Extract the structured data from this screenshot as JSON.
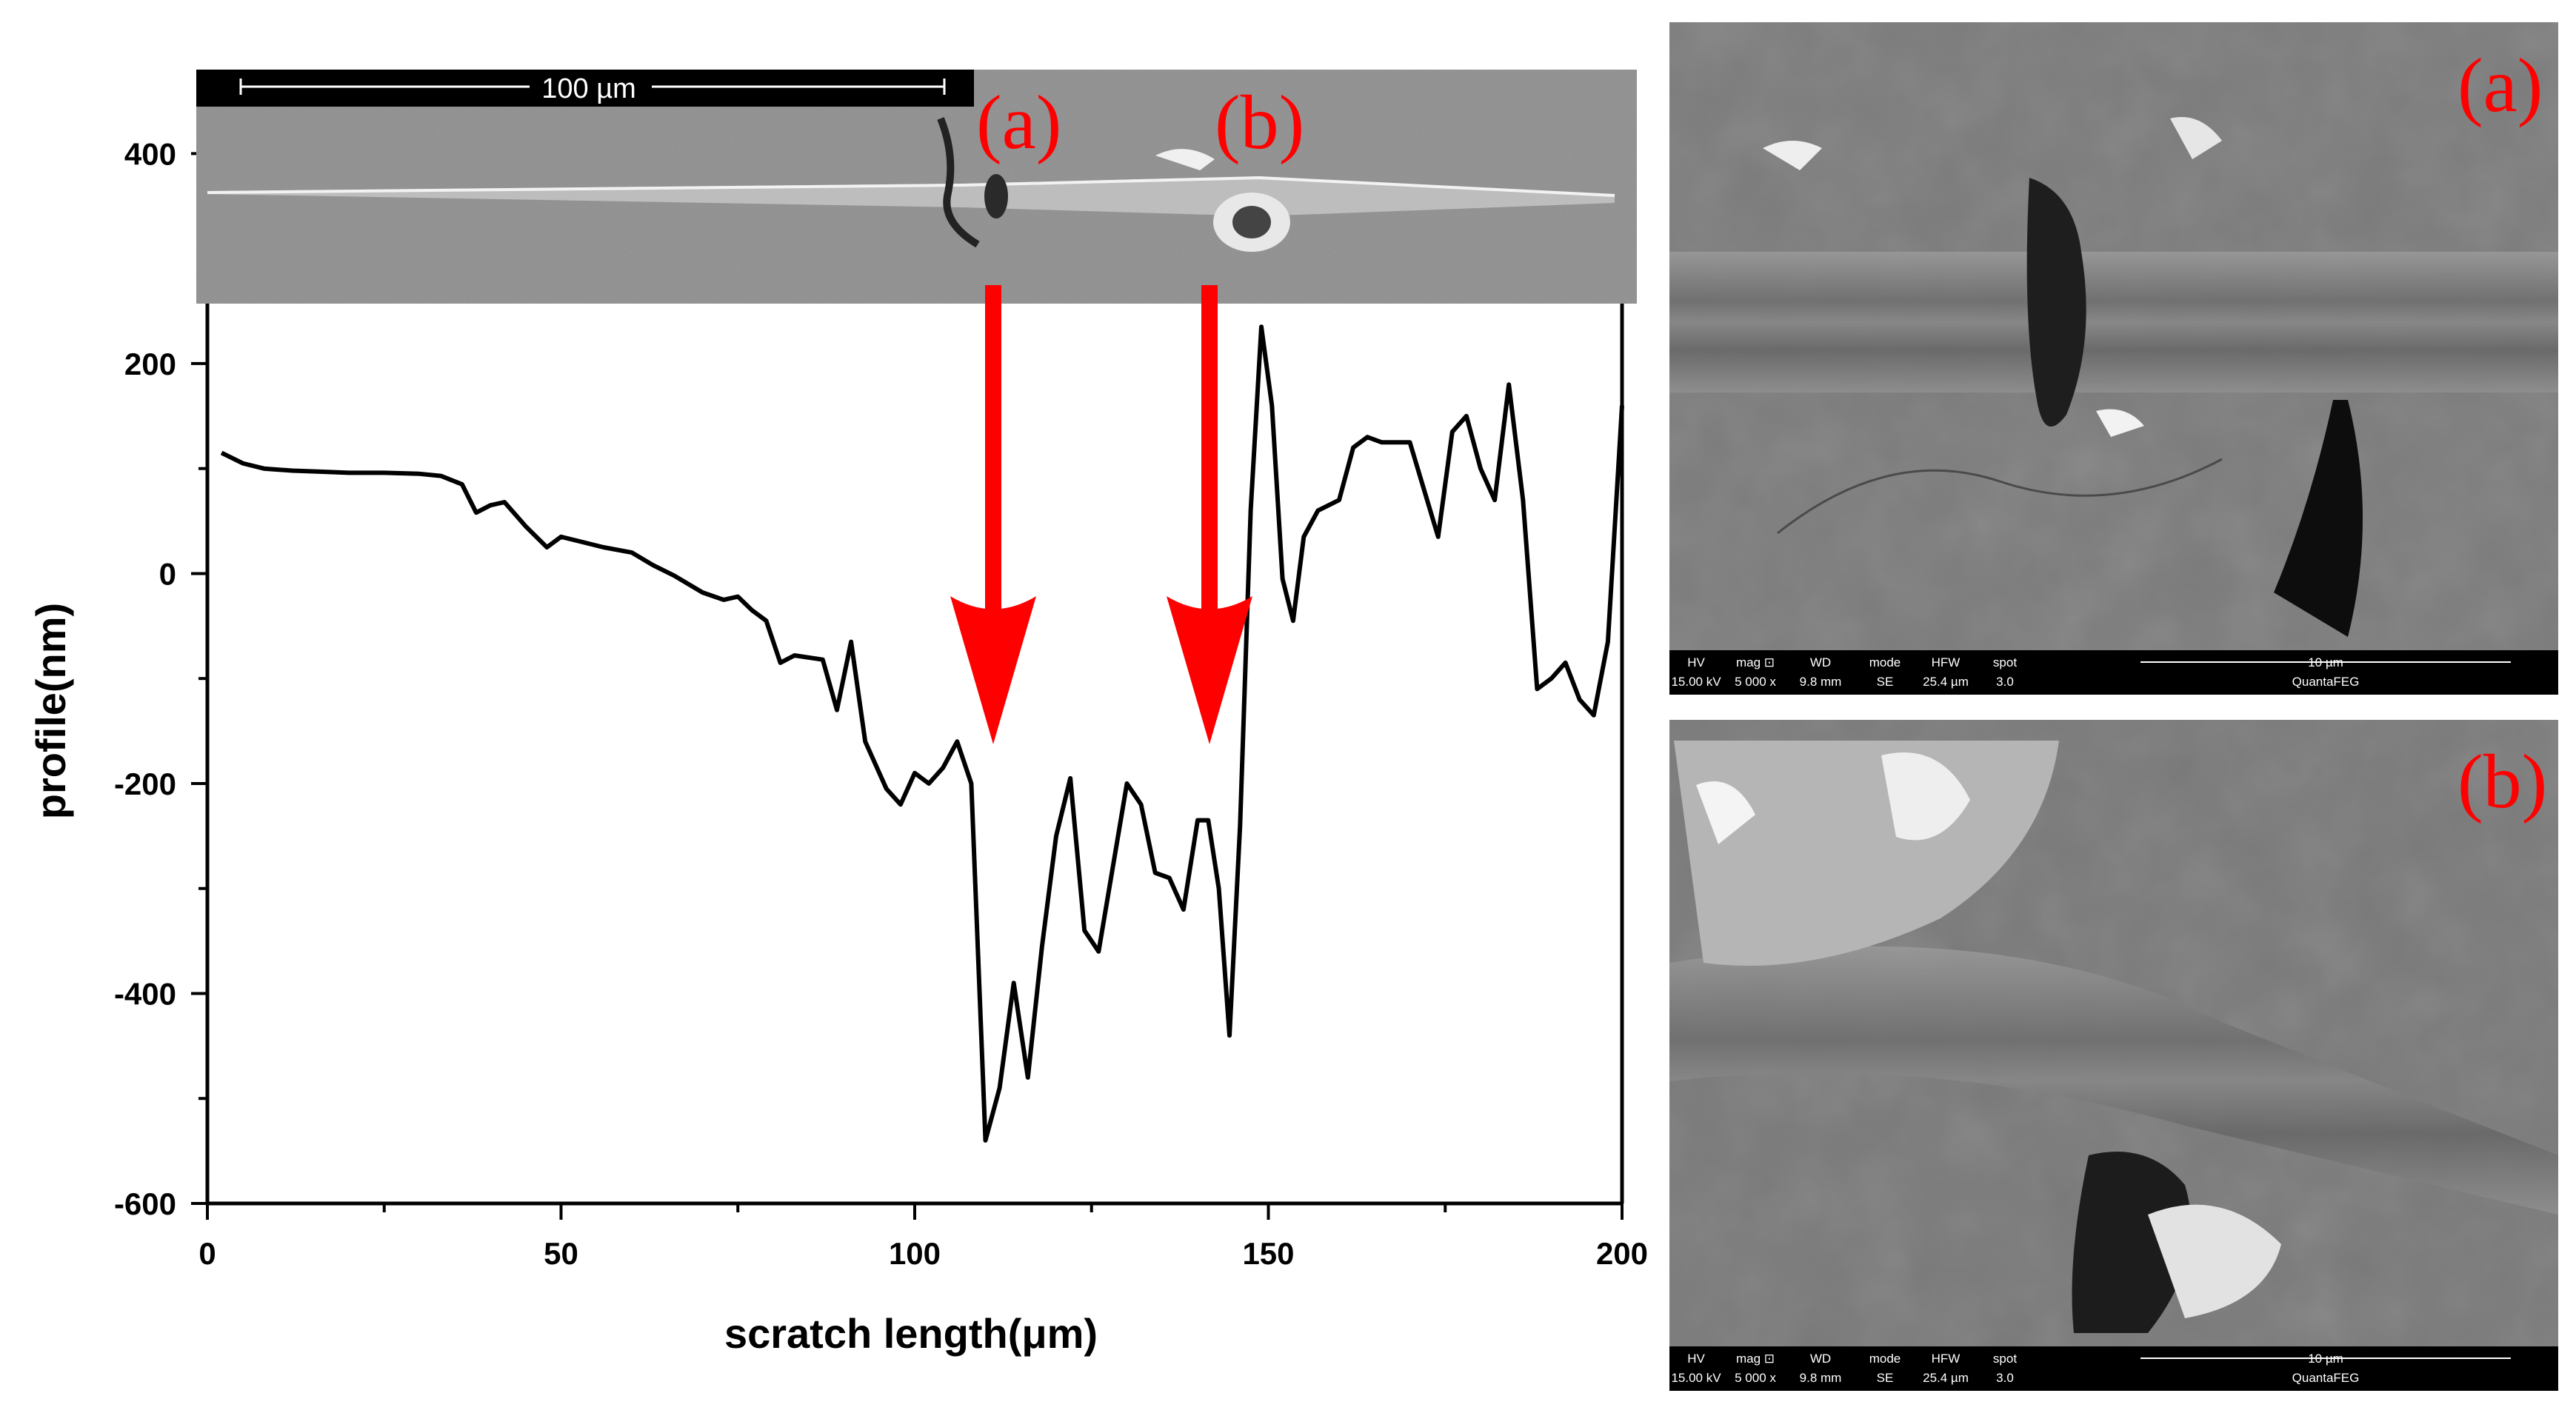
{
  "chart_data": {
    "type": "line",
    "title": "",
    "xlabel": "scratch length(μm)",
    "ylabel": "profile(nm)",
    "xlim": [
      0,
      200
    ],
    "ylim": [
      -600,
      480
    ],
    "x_ticks": [
      "0",
      "50",
      "100",
      "150",
      "200"
    ],
    "y_ticks": [
      "400",
      "200",
      "0",
      "-200",
      "-400",
      "-600"
    ],
    "grid": false,
    "series": [
      {
        "name": "",
        "color": "#000000",
        "x": [
          2,
          5,
          8,
          12,
          16,
          20,
          25,
          30,
          33,
          36,
          38,
          40,
          42,
          45,
          48,
          50,
          53,
          56,
          60,
          63,
          66,
          70,
          73,
          75,
          77,
          79,
          81,
          83,
          85,
          87,
          89,
          91,
          93,
          96,
          98,
          100,
          102,
          104,
          106,
          108,
          110,
          112,
          114,
          116,
          118,
          120,
          122,
          124,
          126,
          128,
          130,
          132,
          134,
          136,
          138,
          140,
          141.5,
          143,
          144.5,
          146,
          147.5,
          149,
          150.5,
          152,
          153.5,
          155,
          157,
          160,
          162,
          164,
          166,
          168,
          170,
          172,
          174,
          176,
          178,
          180,
          182,
          184,
          186,
          188,
          190,
          192,
          194,
          196,
          198,
          200
        ],
        "y": [
          115,
          105,
          100,
          98,
          97,
          96,
          96,
          95,
          93,
          85,
          58,
          65,
          68,
          45,
          25,
          35,
          30,
          25,
          20,
          8,
          -2,
          -18,
          -25,
          -22,
          -35,
          -45,
          -85,
          -78,
          -80,
          -82,
          -130,
          -65,
          -160,
          -205,
          -220,
          -190,
          -200,
          -185,
          -160,
          -200,
          -540,
          -490,
          -390,
          -480,
          -355,
          -250,
          -195,
          -340,
          -360,
          -280,
          -200,
          -220,
          -285,
          -290,
          -320,
          -235,
          -235,
          -300,
          -440,
          -240,
          60,
          235,
          160,
          -5,
          -45,
          35,
          60,
          70,
          120,
          130,
          125,
          125,
          125,
          80,
          35,
          135,
          150,
          100,
          70,
          180,
          70,
          -110,
          -100,
          -85,
          -120,
          -135,
          -65,
          160
        ]
      }
    ],
    "annotations": [
      "(a)",
      "(b)"
    ]
  },
  "insets": {
    "overview_scalebar": "100 µm",
    "label_a": "(a)",
    "label_b": "(b)"
  },
  "sem_micrographs": [
    {
      "label": "(a)",
      "footer_headers": [
        "HV",
        "mag ⊡",
        "WD",
        "mode",
        "HFW",
        "spot"
      ],
      "footer_values": [
        "15.00 kV",
        "5 000 x",
        "9.8 mm",
        "SE",
        "25.4 µm",
        "3.0"
      ],
      "scalebar": "10 µm",
      "instrument": "QuantaFEG"
    },
    {
      "label": "(b)",
      "footer_headers": [
        "HV",
        "mag ⊡",
        "WD",
        "mode",
        "HFW",
        "spot"
      ],
      "footer_values": [
        "15.00 kV",
        "5 000 x",
        "9.8 mm",
        "SE",
        "25.4 µm",
        "3.0"
      ],
      "scalebar": "10 µm",
      "instrument": "QuantaFEG"
    }
  ],
  "colors": {
    "arrow": "#ff0000",
    "label": "#ff0000",
    "line": "#000000"
  }
}
